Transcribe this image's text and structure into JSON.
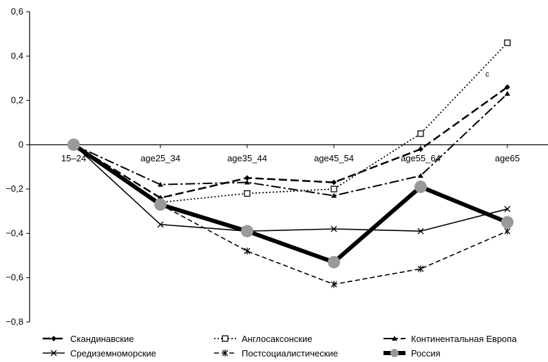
{
  "chart_data": {
    "type": "line",
    "title": "",
    "xlabel": "",
    "ylabel": "",
    "categories": [
      "15–24",
      "age25_34",
      "age35_44",
      "age45_54",
      "age55_64",
      "age65"
    ],
    "ylim": [
      -0.8,
      0.6
    ],
    "yticks": [
      0.6,
      0.4,
      0.2,
      0,
      -0.2,
      -0.4,
      -0.6,
      -0.8
    ],
    "ytick_labels": [
      "0,6",
      "0,4",
      "0,2",
      "0",
      "−0,2",
      "−0,4",
      "−0,6",
      "−0,8"
    ],
    "grid": false,
    "legend_position": "bottom",
    "series": [
      {
        "name": "Скандинавские",
        "values": [
          0,
          -0.24,
          -0.15,
          -0.17,
          -0.02,
          0.26
        ],
        "color": "#000000",
        "dash": "12,5",
        "width": 2.5,
        "marker": "diamond"
      },
      {
        "name": "Англосаксонские",
        "values": [
          0,
          -0.26,
          -0.22,
          -0.2,
          0.05,
          0.46
        ],
        "color": "#000000",
        "dash": "2,3",
        "width": 1.8,
        "marker": "square"
      },
      {
        "name": "Континентальная Европа",
        "values": [
          0,
          -0.18,
          -0.17,
          -0.23,
          -0.14,
          0.23
        ],
        "color": "#000000",
        "dash": "14,4,3,4",
        "width": 2,
        "marker": "triangle"
      },
      {
        "name": "Средиземноморские",
        "values": [
          0,
          -0.36,
          -0.39,
          -0.38,
          -0.39,
          -0.29
        ],
        "color": "#000000",
        "dash": "",
        "width": 1.6,
        "marker": "x"
      },
      {
        "name": "Постсоциалистические",
        "values": [
          0,
          -0.27,
          -0.48,
          -0.63,
          -0.56,
          -0.39
        ],
        "color": "#000000",
        "dash": "7,4",
        "width": 1.6,
        "marker": "star"
      },
      {
        "name": "Россия",
        "values": [
          0,
          -0.27,
          -0.39,
          -0.53,
          -0.19,
          -0.35
        ],
        "color": "#000000",
        "dash": "",
        "width": 6,
        "marker": "circle"
      }
    ],
    "annotations": [
      {
        "text": "c",
        "x": "age65",
        "y": 0.32
      }
    ]
  }
}
